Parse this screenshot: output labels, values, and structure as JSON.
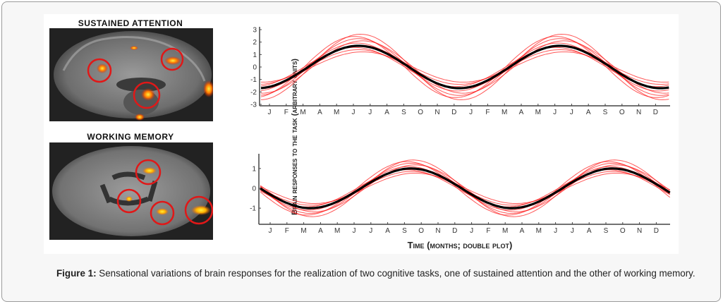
{
  "figure": {
    "panel_labels": [
      "SUSTAINED ATTENTION",
      "WORKING MEMORY"
    ],
    "ylabel": "Brain responses to the task (arbitrary units)",
    "xlabel": "Time (months; double plot)"
  },
  "caption": {
    "label": "Figure 1:",
    "text": "Sensational variations of brain responses for the realization of two cognitive tasks, one of sustained attention and the other of working memory."
  },
  "colors": {
    "mean": "#000000",
    "individual": "#ff2020",
    "highlight_circle": "#e01818",
    "activation": "#ff9a00"
  },
  "chart_data": [
    {
      "type": "line",
      "panel": "SUSTAINED ATTENTION",
      "categories": [
        "J",
        "F",
        "M",
        "A",
        "M",
        "J",
        "J",
        "A",
        "S",
        "O",
        "N",
        "D",
        "J",
        "F",
        "M",
        "A",
        "M",
        "J",
        "J",
        "A",
        "S",
        "O",
        "N",
        "D"
      ],
      "ylim": [
        -3,
        3
      ],
      "yticks": [
        3,
        2,
        1,
        0,
        -1,
        -2,
        -3
      ],
      "grid": false,
      "series": [
        {
          "role": "mean",
          "values": [
            -1.59,
            -1.07,
            -0.27,
            0.61,
            1.32,
            1.68,
            1.59,
            1.07,
            0.27,
            -0.61,
            -1.32,
            -1.68,
            -1.59,
            -1.07,
            -0.27,
            0.61,
            1.32,
            1.68,
            1.59,
            1.07,
            0.27,
            -0.61,
            -1.32,
            -1.68
          ]
        }
      ],
      "individual_peak_range": [
        1.2,
        2.6
      ]
    },
    {
      "type": "line",
      "panel": "WORKING MEMORY",
      "categories": [
        "J",
        "F",
        "M",
        "A",
        "M",
        "J",
        "J",
        "A",
        "S",
        "O",
        "N",
        "D",
        "J",
        "F",
        "M",
        "A",
        "M",
        "J",
        "J",
        "A",
        "S",
        "O",
        "N",
        "D"
      ],
      "ylim": [
        -1.6,
        1.6
      ],
      "yticks": [
        1,
        0,
        -1
      ],
      "grid": false,
      "series": [
        {
          "role": "mean",
          "values": [
            -0.31,
            -0.74,
            -0.98,
            -0.95,
            -0.67,
            -0.21,
            0.31,
            0.74,
            0.98,
            0.95,
            0.67,
            0.21,
            -0.31,
            -0.74,
            -0.98,
            -0.95,
            -0.67,
            -0.21,
            0.31,
            0.74,
            0.98,
            0.95,
            0.67,
            0.21
          ]
        }
      ],
      "individual_peak_range": [
        0.75,
        1.4
      ]
    }
  ]
}
